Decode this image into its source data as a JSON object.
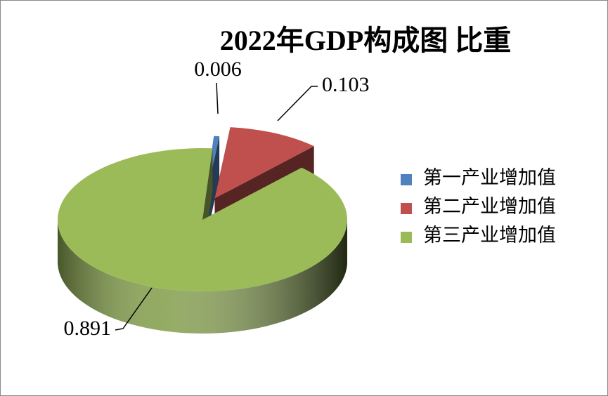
{
  "chart_data": {
    "type": "pie",
    "title": "2022年GDP构成图 比重",
    "categories": [
      "第一产业增加值",
      "第二产业增加值",
      "第三产业增加值"
    ],
    "values": [
      0.006,
      0.103,
      0.891
    ],
    "colors": [
      "#4f81bd",
      "#c0504d",
      "#9bbb59"
    ],
    "legend": "right"
  }
}
